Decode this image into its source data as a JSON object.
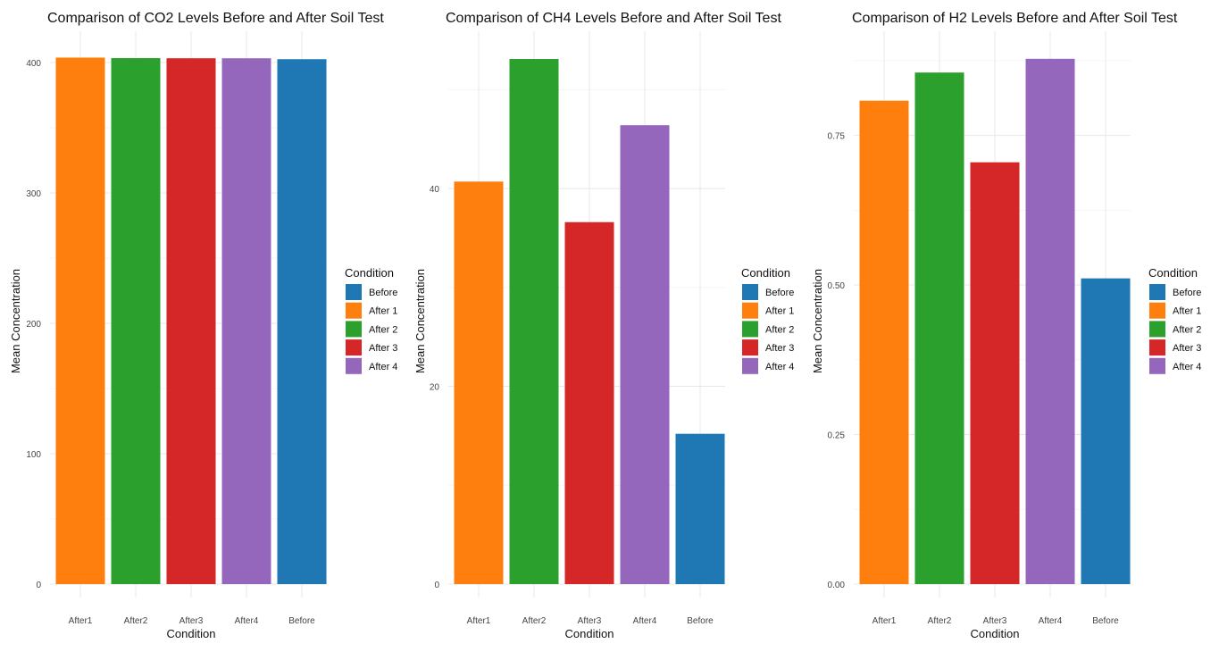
{
  "chart_data": [
    {
      "type": "bar",
      "title": "Comparison of CO2 Levels Before and After Soil Test",
      "xlabel": "Condition",
      "ylabel": "Mean Concentration",
      "categories": [
        "After1",
        "After2",
        "After3",
        "After4",
        "Before"
      ],
      "series": [
        {
          "values": [
            403.8,
            403.4,
            403.3,
            403.3,
            402.6
          ]
        }
      ],
      "bar_colors": [
        "#ff7f0e",
        "#2ca02c",
        "#d62728",
        "#9467bd",
        "#1f77b4"
      ],
      "yticks": [
        0,
        100,
        200,
        300,
        400
      ],
      "ylim": [
        0,
        424
      ],
      "grid": true,
      "legend": {
        "title": "Condition",
        "placement": "right",
        "items": [
          {
            "label": "Before",
            "color": "#1f77b4"
          },
          {
            "label": "After 1",
            "color": "#ff7f0e"
          },
          {
            "label": "After 2",
            "color": "#2ca02c"
          },
          {
            "label": "After 3",
            "color": "#d62728"
          },
          {
            "label": "After 4",
            "color": "#9467bd"
          }
        ]
      }
    },
    {
      "type": "bar",
      "title": "Comparison of CH4 Levels Before and After Soil Test",
      "xlabel": "Condition",
      "ylabel": "Mean Concentration",
      "categories": [
        "After1",
        "After2",
        "After3",
        "After4",
        "Before"
      ],
      "series": [
        {
          "values": [
            40.7,
            53.1,
            36.6,
            46.4,
            15.2
          ]
        }
      ],
      "bar_colors": [
        "#ff7f0e",
        "#2ca02c",
        "#d62728",
        "#9467bd",
        "#1f77b4"
      ],
      "yticks": [
        0,
        20,
        40
      ],
      "ylim": [
        0,
        55.9
      ],
      "grid": true,
      "legend": {
        "title": "Condition",
        "placement": "right",
        "items": [
          {
            "label": "Before",
            "color": "#1f77b4"
          },
          {
            "label": "After 1",
            "color": "#ff7f0e"
          },
          {
            "label": "After 2",
            "color": "#2ca02c"
          },
          {
            "label": "After 3",
            "color": "#d62728"
          },
          {
            "label": "After 4",
            "color": "#9467bd"
          }
        ]
      }
    },
    {
      "type": "bar",
      "title": "Comparison of H2 Levels Before and After Soil Test",
      "xlabel": "Condition",
      "ylabel": "Mean Concentration",
      "categories": [
        "After1",
        "After2",
        "After3",
        "After4",
        "Before"
      ],
      "series": [
        {
          "values": [
            0.808,
            0.855,
            0.705,
            0.878,
            0.511
          ]
        }
      ],
      "bar_colors": [
        "#ff7f0e",
        "#2ca02c",
        "#d62728",
        "#9467bd",
        "#1f77b4"
      ],
      "yticks": [
        "0.00",
        "0.25",
        "0.50",
        "0.75"
      ],
      "ylim": [
        0,
        0.924
      ],
      "grid": true,
      "legend": {
        "title": "Condition",
        "placement": "right",
        "items": [
          {
            "label": "Before",
            "color": "#1f77b4"
          },
          {
            "label": "After 1",
            "color": "#ff7f0e"
          },
          {
            "label": "After 2",
            "color": "#2ca02c"
          },
          {
            "label": "After 3",
            "color": "#d62728"
          },
          {
            "label": "After 4",
            "color": "#9467bd"
          }
        ]
      }
    }
  ]
}
